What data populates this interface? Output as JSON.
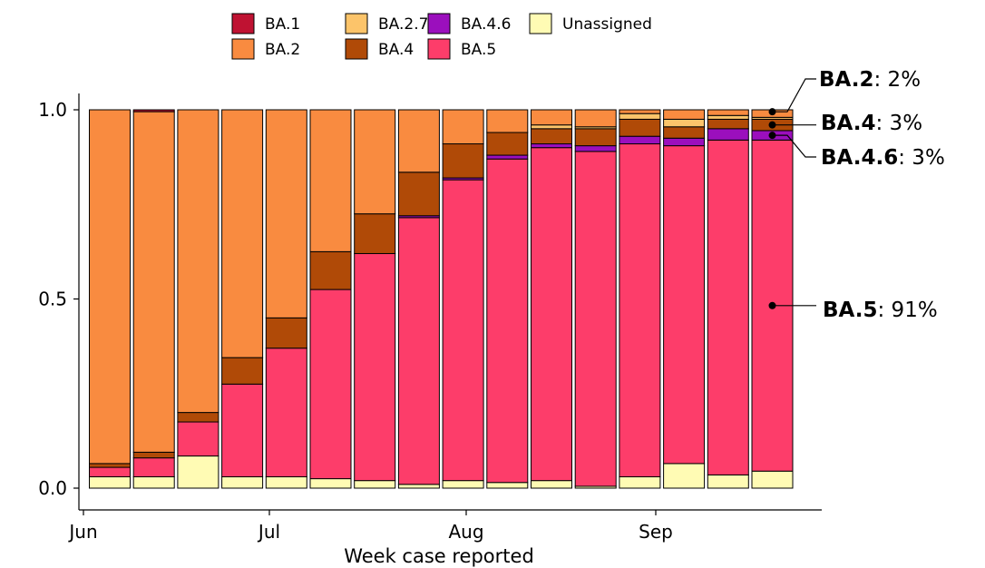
{
  "chart_data": {
    "type": "bar",
    "stacked": true,
    "xlabel": "Week case reported",
    "ylabel": "",
    "ylim": [
      0,
      1
    ],
    "yticks": [
      0.0,
      0.5,
      1.0
    ],
    "ytick_labels": [
      "0.0",
      "0.5",
      "1.0"
    ],
    "xtick_labels": [
      "Jun",
      "Jul",
      "Aug",
      "Sep"
    ],
    "week_count": 16,
    "grid": false,
    "legend": {
      "placement": "top",
      "entries": [
        "BA.1",
        "BA.2",
        "BA.2.75",
        "BA.4",
        "BA.4.6",
        "BA.5",
        "Unassigned"
      ]
    },
    "series_colors": {
      "BA.1": "#bf1232",
      "BA.2": "#f98b40",
      "BA.2.75": "#fcc46a",
      "BA.4": "#b04a07",
      "BA.4.6": "#9b0fbd",
      "BA.5": "#fd3d6a",
      "Unassigned": "#fffbb4"
    },
    "stack_order": [
      "Unassigned",
      "BA.5",
      "BA.4.6",
      "BA.4",
      "BA.2.75",
      "BA.2",
      "BA.1"
    ],
    "series": [
      {
        "name": "Unassigned",
        "values": [
          0.03,
          0.03,
          0.085,
          0.03,
          0.03,
          0.025,
          0.02,
          0.01,
          0.02,
          0.015,
          0.02,
          0.005,
          0.03,
          0.065,
          0.035,
          0.045
        ]
      },
      {
        "name": "BA.5",
        "values": [
          0.025,
          0.05,
          0.09,
          0.245,
          0.34,
          0.5,
          0.6,
          0.705,
          0.795,
          0.855,
          0.88,
          0.885,
          0.88,
          0.84,
          0.885,
          0.875
        ]
      },
      {
        "name": "BA.4.6",
        "values": [
          0.0,
          0.0,
          0.0,
          0.0,
          0.0,
          0.0,
          0.0,
          0.005,
          0.005,
          0.01,
          0.01,
          0.015,
          0.02,
          0.02,
          0.03,
          0.025
        ]
      },
      {
        "name": "BA.4",
        "values": [
          0.01,
          0.015,
          0.025,
          0.07,
          0.08,
          0.1,
          0.105,
          0.115,
          0.09,
          0.06,
          0.04,
          0.045,
          0.045,
          0.03,
          0.025,
          0.03
        ]
      },
      {
        "name": "BA.2.75",
        "values": [
          0.0,
          0.0,
          0.0,
          0.0,
          0.0,
          0.0,
          0.0,
          0.0,
          0.0,
          0.0,
          0.01,
          0.005,
          0.015,
          0.02,
          0.01,
          0.005
        ]
      },
      {
        "name": "BA.2",
        "values": [
          0.935,
          0.9,
          0.8,
          0.655,
          0.55,
          0.375,
          0.275,
          0.165,
          0.09,
          0.06,
          0.04,
          0.045,
          0.01,
          0.025,
          0.015,
          0.02
        ]
      },
      {
        "name": "BA.1",
        "values": [
          0.0,
          0.005,
          0.0,
          0.0,
          0.0,
          0.0,
          0.0,
          0.0,
          0.0,
          0.0,
          0.0,
          0.0,
          0.0,
          0.0,
          0.0,
          0.0
        ]
      }
    ],
    "annotations": [
      {
        "name": "BA.2",
        "value": ": 2%"
      },
      {
        "name": "BA.4",
        "value": ": 3%"
      },
      {
        "name": "BA.4.6",
        "value": ": 3%"
      },
      {
        "name": "BA.5",
        "value": ": 91%"
      }
    ]
  }
}
